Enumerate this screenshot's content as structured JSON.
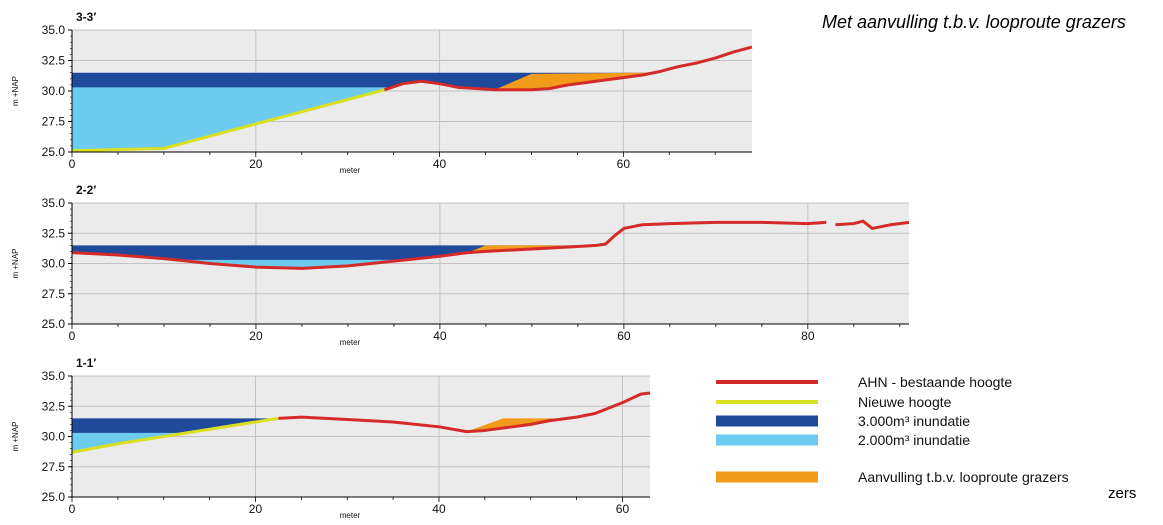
{
  "header": {
    "title": "Met aanvulling t.b.v. looproute grazers"
  },
  "clipped_text": "zers",
  "colors": {
    "ahn": "#d42a2a",
    "new_height": "#d9e021",
    "inundation_3000": "#1f4a9c",
    "inundation_2000": "#6ccbef",
    "fill_grazers": "#f29a1a",
    "plot_bg": "#ebebeb",
    "grid": "#c2c2c2"
  },
  "legend": [
    {
      "key": "ahn",
      "label": "AHN - bestaande hoogte"
    },
    {
      "key": "new_height",
      "label": "Nieuwe hoogte"
    },
    {
      "key": "inundation_3000",
      "label": "3.000m³ inundatie"
    },
    {
      "key": "inundation_2000",
      "label": "2.000m³ inundatie"
    },
    {
      "key": "fill_grazers",
      "label": "Aanvulling t.b.v. looproute grazers"
    }
  ],
  "chart_data": [
    {
      "type": "area",
      "title": "3-3′",
      "xlabel": "meter",
      "ylabel": "m +NAP",
      "xlim": [
        0,
        74
      ],
      "ylim": [
        25,
        35
      ],
      "xticks": [
        0,
        20,
        40,
        60
      ],
      "yticks": [
        "25.0",
        "27.5",
        "30.0",
        "32.5",
        "35.0"
      ],
      "levels": {
        "inundation_3000_top": 31.5,
        "inundation_2000_top": 30.3
      },
      "new_height": {
        "x": [
          0,
          10,
          20,
          30,
          34
        ],
        "y": [
          25.1,
          25.3,
          27.3,
          29.3,
          30.1
        ]
      },
      "ahn": {
        "x": [
          34,
          36,
          38,
          40,
          42,
          44,
          46,
          48,
          50,
          52,
          54,
          56,
          58,
          60,
          62,
          64,
          66,
          68,
          70,
          72,
          74
        ],
        "y": [
          30.1,
          30.6,
          30.8,
          30.6,
          30.3,
          30.2,
          30.1,
          30.1,
          30.1,
          30.2,
          30.5,
          30.7,
          30.9,
          31.1,
          31.3,
          31.6,
          32.0,
          32.3,
          32.7,
          33.2,
          33.6
        ]
      },
      "fill_grazers": {
        "x": [
          46,
          50,
          62,
          63.5
        ],
        "y": [
          30.1,
          31.4,
          31.5,
          31.5
        ]
      }
    },
    {
      "type": "area",
      "title": "2-2′",
      "xlabel": "meter",
      "ylabel": "m +NAP",
      "xlim": [
        0,
        91
      ],
      "ylim": [
        25,
        35
      ],
      "xticks": [
        0,
        20,
        40,
        60,
        80
      ],
      "yticks": [
        "25.0",
        "27.5",
        "30.0",
        "32.5",
        "35.0"
      ],
      "levels": {
        "inundation_3000_top": 31.5,
        "inundation_2000_top": 30.3
      },
      "ahn": {
        "x": [
          0,
          5,
          10,
          15,
          20,
          25,
          30,
          35,
          40,
          43,
          45,
          50,
          55,
          57,
          58,
          59,
          60,
          62,
          65,
          70,
          75,
          80,
          82
        ],
        "y": [
          30.9,
          30.7,
          30.4,
          30.0,
          29.7,
          29.6,
          29.8,
          30.2,
          30.6,
          30.9,
          31.0,
          31.2,
          31.4,
          31.5,
          31.6,
          32.3,
          32.9,
          33.2,
          33.3,
          33.4,
          33.4,
          33.3,
          33.4
        ]
      },
      "ahn_segment_2": {
        "x": [
          83,
          85,
          86,
          87,
          89,
          91
        ],
        "y": [
          33.2,
          33.3,
          33.5,
          32.9,
          33.2,
          33.4
        ]
      },
      "fill_grazers": {
        "x": [
          43,
          45,
          57
        ],
        "y": [
          30.9,
          31.5,
          31.5
        ]
      }
    },
    {
      "type": "area",
      "title": "1-1′",
      "xlabel": "meter",
      "ylabel": "m +NAP",
      "xlim": [
        0,
        63
      ],
      "ylim": [
        25,
        35
      ],
      "xticks": [
        0,
        20,
        40,
        60
      ],
      "yticks": [
        "25.0",
        "27.5",
        "30.0",
        "32.5",
        "35.0"
      ],
      "levels": {
        "inundation_3000_top": 31.5,
        "inundation_2000_top": 30.3
      },
      "new_height": {
        "x": [
          0,
          5,
          10,
          15,
          20,
          22.5
        ],
        "y": [
          28.7,
          29.4,
          30.0,
          30.6,
          31.2,
          31.5
        ]
      },
      "ahn": {
        "x": [
          22.5,
          25,
          30,
          35,
          40,
          43,
          45,
          48,
          50,
          52,
          55,
          57,
          60,
          62,
          63
        ],
        "y": [
          31.5,
          31.6,
          31.4,
          31.2,
          30.8,
          30.4,
          30.5,
          30.8,
          31.0,
          31.3,
          31.6,
          31.9,
          32.8,
          33.5,
          33.6
        ]
      },
      "fill_grazers": {
        "x": [
          43,
          47,
          55
        ],
        "y": [
          30.4,
          31.5,
          31.5
        ]
      }
    }
  ]
}
